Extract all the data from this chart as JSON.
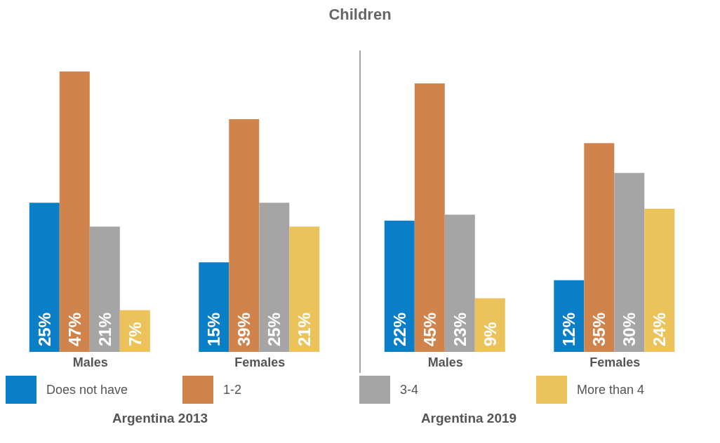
{
  "chart_data": [
    {
      "type": "bar",
      "title": "Children",
      "xlabel": "Argentina 2013",
      "categories": [
        "Males",
        "Females"
      ],
      "legend": "bottom",
      "series": [
        {
          "name": "Does not have",
          "color": "#0a7fc8",
          "values": [
            25,
            15
          ],
          "value_labels": [
            "25%",
            "15%"
          ]
        },
        {
          "name": "1-2",
          "color": "#d0844c",
          "values": [
            47,
            39
          ],
          "value_labels": [
            "47%",
            "39%"
          ]
        },
        {
          "name": "3-4",
          "color": "#a5a5a5",
          "values": [
            21,
            25
          ],
          "value_labels": [
            "21%",
            "25%"
          ]
        },
        {
          "name": "More than 4",
          "color": "#ecc35a",
          "values": [
            7,
            21
          ],
          "value_labels": [
            "7%",
            "21%"
          ]
        }
      ]
    },
    {
      "type": "bar",
      "xlabel": "Argentina 2019",
      "categories": [
        "Males",
        "Females"
      ],
      "series": [
        {
          "color": "#0a7fc8",
          "values": [
            22,
            12
          ],
          "value_labels": [
            "22%",
            "12%"
          ]
        },
        {
          "color": "#d0844c",
          "values": [
            45,
            35
          ],
          "value_labels": [
            "45%",
            "35%"
          ]
        },
        {
          "color": "#a5a5a5",
          "values": [
            23,
            30
          ],
          "value_labels": [
            "23%",
            "30%"
          ]
        },
        {
          "color": "#ecc35a",
          "values": [
            9,
            24
          ],
          "value_labels": [
            "9%",
            "24%"
          ]
        }
      ]
    }
  ]
}
